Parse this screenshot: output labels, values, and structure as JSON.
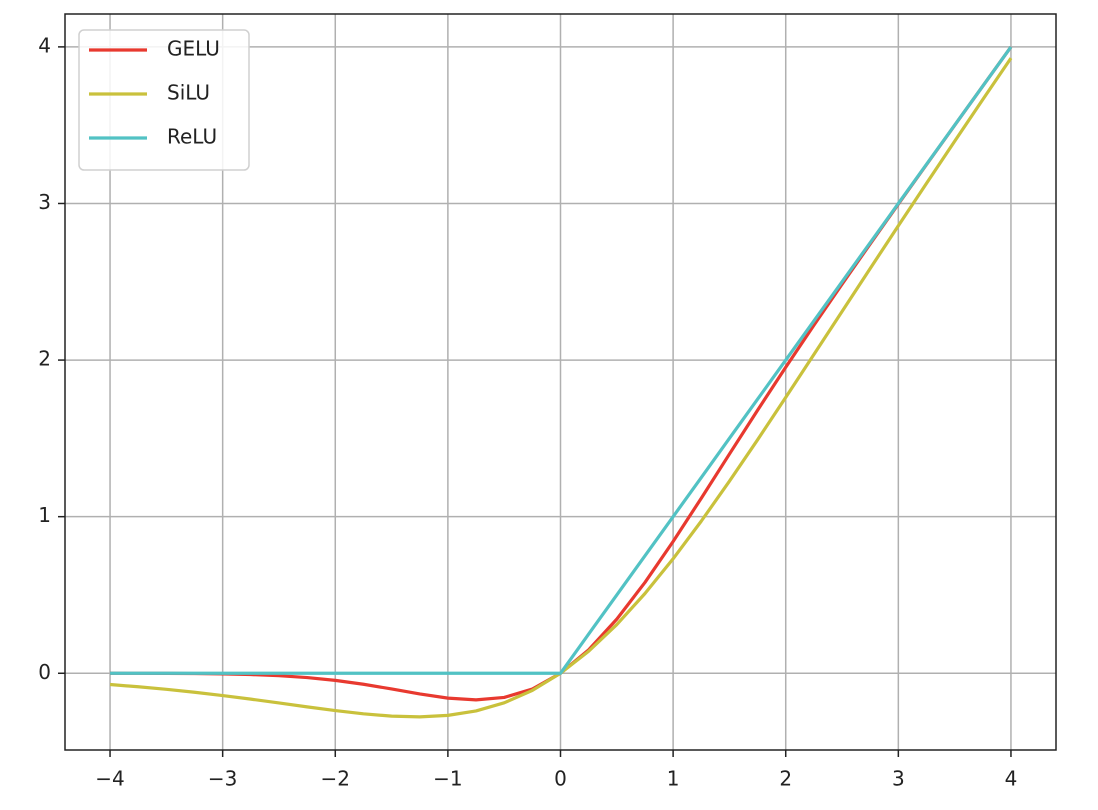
{
  "chart_data": {
    "type": "line",
    "x": [
      -4,
      -3.75,
      -3.5,
      -3.25,
      -3,
      -2.75,
      -2.5,
      -2.25,
      -2,
      -1.75,
      -1.5,
      -1.25,
      -1,
      -0.75,
      -0.5,
      -0.25,
      0,
      0.25,
      0.5,
      0.75,
      1,
      1.25,
      1.5,
      1.75,
      2,
      2.25,
      2.5,
      2.75,
      3,
      3.25,
      3.5,
      3.75,
      4
    ],
    "series": [
      {
        "name": "GELU",
        "color": "#e8392f",
        "values": [
          -0.0001,
          -0.0003,
          -0.0008,
          -0.0019,
          -0.0041,
          -0.0082,
          -0.0155,
          -0.0275,
          -0.0455,
          -0.0701,
          -0.1002,
          -0.1321,
          -0.1587,
          -0.17,
          -0.1543,
          -0.1003,
          0,
          0.1497,
          0.3457,
          0.58,
          0.8413,
          1.1179,
          1.3998,
          1.6799,
          1.9545,
          2.2225,
          2.4845,
          2.7418,
          2.996,
          3.2481,
          3.4992,
          3.7497,
          3.9999
        ]
      },
      {
        "name": "SiLU",
        "color": "#c9c13c",
        "values": [
          -0.0719,
          -0.0862,
          -0.1026,
          -0.1213,
          -0.1423,
          -0.1652,
          -0.1896,
          -0.2145,
          -0.2384,
          -0.2591,
          -0.2736,
          -0.2784,
          -0.2689,
          -0.2406,
          -0.1888,
          -0.1095,
          0,
          0.1405,
          0.3112,
          0.5094,
          0.7311,
          0.9716,
          1.2264,
          1.4909,
          1.7616,
          2.0355,
          2.3104,
          2.5848,
          2.8577,
          3.1287,
          3.3974,
          3.6638,
          3.9281
        ]
      },
      {
        "name": "ReLU",
        "color": "#52c2c4",
        "values": [
          0,
          0,
          0,
          0,
          0,
          0,
          0,
          0,
          0,
          0,
          0,
          0,
          0,
          0,
          0,
          0,
          0,
          0.25,
          0.5,
          0.75,
          1,
          1.25,
          1.5,
          1.75,
          2,
          2.25,
          2.5,
          2.75,
          3,
          3.25,
          3.5,
          3.75,
          4
        ]
      }
    ],
    "xlim": [
      -4.4,
      4.4
    ],
    "ylim": [
      -0.49,
      4.21
    ],
    "xticks": [
      {
        "value": -4,
        "label": "−4"
      },
      {
        "value": -3,
        "label": "−3"
      },
      {
        "value": -2,
        "label": "−2"
      },
      {
        "value": -1,
        "label": "−1"
      },
      0,
      1,
      2,
      3,
      4
    ],
    "yticks": [
      0,
      1,
      2,
      3,
      4
    ],
    "grid": true,
    "legend": "upper-left"
  }
}
